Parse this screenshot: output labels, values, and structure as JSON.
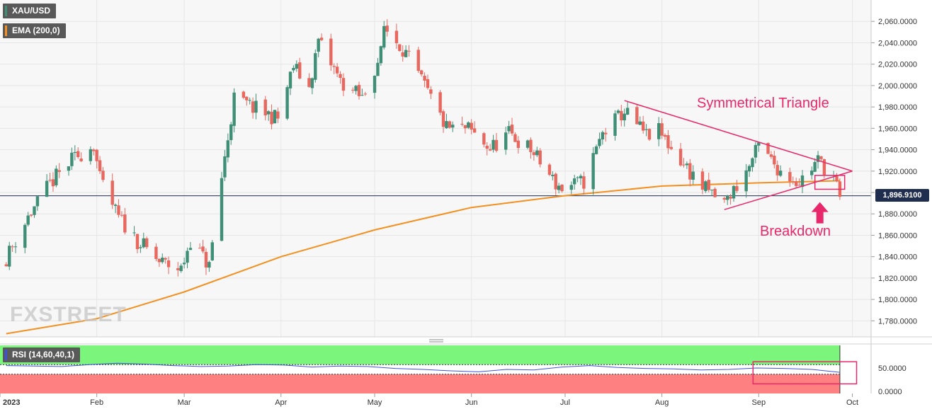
{
  "chart_data": {
    "type": "candlestick",
    "instrument": "XAU/USD",
    "indicator_label": "EMA (200,0)",
    "rsi_label": "RSI (14,60,40,1)",
    "current_price": 1896.91,
    "current_price_label": "1,896.9100",
    "ylim": [
      1765,
      2080
    ],
    "y_ticks": [
      1780,
      1800,
      1820,
      1840,
      1860,
      1880,
      1900,
      1920,
      1940,
      1960,
      1980,
      2000,
      2020,
      2040,
      2060
    ],
    "y_tick_labels": [
      "1,780.0000",
      "1,800.0000",
      "1,820.0000",
      "1,840.0000",
      "1,860.0000",
      "1,880.0000",
      "1,900.0000",
      "1,920.0000",
      "1,940.0000",
      "1,960.0000",
      "1,980.0000",
      "2,000.0000",
      "2,020.0000",
      "2,040.0000",
      "2,060.0000"
    ],
    "x_month_labels": [
      {
        "label": "2023",
        "date": "2023-01-01"
      },
      {
        "label": "Feb",
        "date": "2023-02-01"
      },
      {
        "label": "Mar",
        "date": "2023-03-01"
      },
      {
        "label": "Apr",
        "date": "2023-04-01"
      },
      {
        "label": "May",
        "date": "2023-05-01"
      },
      {
        "label": "Jun",
        "date": "2023-06-01"
      },
      {
        "label": "Jul",
        "date": "2023-07-01"
      },
      {
        "label": "Aug",
        "date": "2023-08-01"
      },
      {
        "label": "Sep",
        "date": "2023-09-01"
      },
      {
        "label": "Oct",
        "date": "2023-10-01"
      }
    ],
    "closes": [
      [
        "2023-01-03",
        1839
      ],
      [
        "2023-01-10",
        1877
      ],
      [
        "2023-01-17",
        1908
      ],
      [
        "2023-01-24",
        1930
      ],
      [
        "2023-01-31",
        1945
      ],
      [
        "2023-02-02",
        1912
      ],
      [
        "2023-02-08",
        1876
      ],
      [
        "2023-02-14",
        1855
      ],
      [
        "2023-02-21",
        1835
      ],
      [
        "2023-02-28",
        1828
      ],
      [
        "2023-03-03",
        1856
      ],
      [
        "2023-03-09",
        1831
      ],
      [
        "2023-03-13",
        1914
      ],
      [
        "2023-03-17",
        1988
      ],
      [
        "2023-03-24",
        1978
      ],
      [
        "2023-03-31",
        1969
      ],
      [
        "2023-04-05",
        2018
      ],
      [
        "2023-04-10",
        1998
      ],
      [
        "2023-04-13",
        2042
      ],
      [
        "2023-04-20",
        2004
      ],
      [
        "2023-04-27",
        1988
      ],
      [
        "2023-05-03",
        2030
      ],
      [
        "2023-05-04",
        2055
      ],
      [
        "2023-05-10",
        2035
      ],
      [
        "2023-05-16",
        2004
      ],
      [
        "2023-05-24",
        1960
      ],
      [
        "2023-05-31",
        1959
      ],
      [
        "2023-06-07",
        1941
      ],
      [
        "2023-06-13",
        1955
      ],
      [
        "2023-06-20",
        1940
      ],
      [
        "2023-06-28",
        1908
      ],
      [
        "2023-06-30",
        1904
      ],
      [
        "2023-07-07",
        1910
      ],
      [
        "2023-07-13",
        1955
      ],
      [
        "2023-07-20",
        1976
      ],
      [
        "2023-07-27",
        1953
      ],
      [
        "2023-07-31",
        1957
      ],
      [
        "2023-08-07",
        1930
      ],
      [
        "2023-08-14",
        1905
      ],
      [
        "2023-08-21",
        1890
      ],
      [
        "2023-08-28",
        1919
      ],
      [
        "2023-09-01",
        1943
      ],
      [
        "2023-09-08",
        1920
      ],
      [
        "2023-09-14",
        1910
      ],
      [
        "2023-09-20",
        1930
      ],
      [
        "2023-09-25",
        1915
      ],
      [
        "2023-09-27",
        1896
      ]
    ],
    "ema_200": [
      [
        "2023-01-03",
        1768
      ],
      [
        "2023-02-01",
        1782
      ],
      [
        "2023-03-01",
        1807
      ],
      [
        "2023-04-01",
        1840
      ],
      [
        "2023-05-01",
        1865
      ],
      [
        "2023-06-01",
        1886
      ],
      [
        "2023-07-01",
        1897
      ],
      [
        "2023-08-01",
        1906
      ],
      [
        "2023-09-01",
        1909
      ],
      [
        "2023-09-27",
        1911
      ]
    ],
    "rsi": {
      "ylim": [
        0,
        100
      ],
      "overbought": 60,
      "oversold": 40,
      "tick_labels": [
        "50.0000",
        "0.0000"
      ],
      "values_first_half": [
        58,
        57,
        56,
        60,
        63,
        61,
        58,
        56,
        57,
        60,
        59
      ],
      "values_second_half": [
        55,
        57,
        56,
        52,
        50,
        47,
        45,
        50,
        49,
        55,
        58,
        54,
        52,
        51,
        49,
        50,
        53,
        52,
        50,
        44
      ]
    },
    "annotations": {
      "pattern_label": "Symmetrical Triangle",
      "signal_label": "Breakdown",
      "triangle_upper": [
        [
          "2023-07-20",
          1986
        ],
        [
          "2023-10-01",
          1920
        ]
      ],
      "triangle_lower": [
        [
          "2023-08-21",
          1884
        ],
        [
          "2023-10-01",
          1920
        ]
      ]
    },
    "watermark": "FXSTREET"
  },
  "colors": {
    "up": "#3f8f77",
    "down": "#e8685f",
    "ema": "#f39020",
    "annotation": "#e8286a",
    "rsi_line": "#3c52d8",
    "rsi_overbought_zone": "#7cf57c",
    "rsi_oversold_zone": "#ff8080",
    "tag_bg": "#595959",
    "price_tag_bg": "#1f2d4f"
  }
}
